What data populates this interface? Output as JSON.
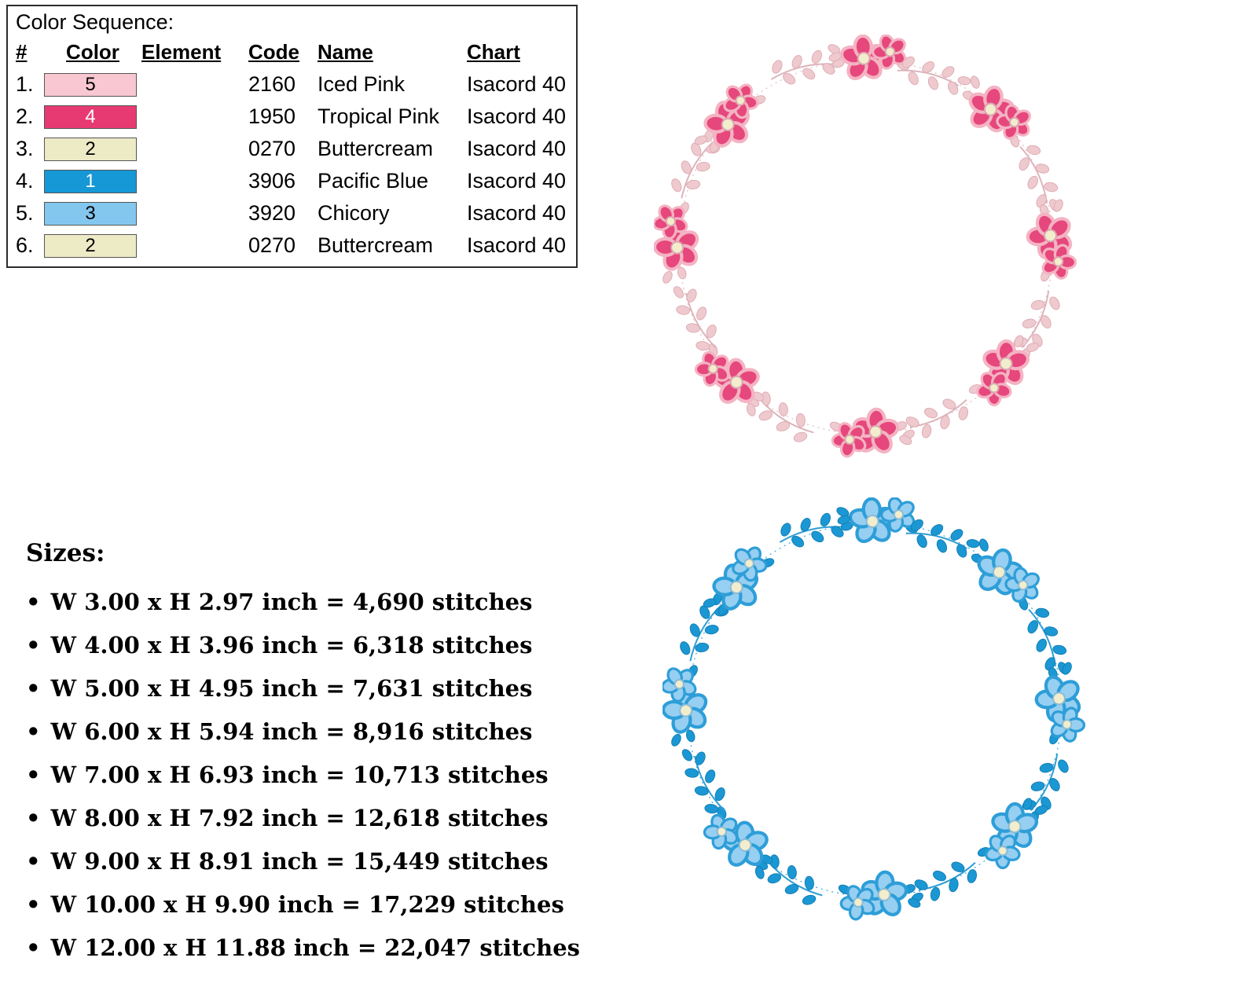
{
  "color_sequence": {
    "title": "Color Sequence:",
    "headers": {
      "num": "#",
      "color": "Color",
      "element": "Element",
      "code": "Code",
      "name": "Name",
      "chart": "Chart"
    },
    "rows": [
      {
        "index": "1.",
        "stop_number": "5",
        "swatch_color": "#f8c7d1",
        "number_color": "#000000",
        "code": "2160",
        "name": "Iced Pink",
        "chart": "Isacord 40"
      },
      {
        "index": "2.",
        "stop_number": "4",
        "swatch_color": "#e83a72",
        "number_color": "#ffffff",
        "code": "1950",
        "name": "Tropical Pink",
        "chart": "Isacord 40"
      },
      {
        "index": "3.",
        "stop_number": "2",
        "swatch_color": "#edeac6",
        "number_color": "#000000",
        "code": "0270",
        "name": "Buttercream",
        "chart": "Isacord 40"
      },
      {
        "index": "4.",
        "stop_number": "1",
        "swatch_color": "#1697d6",
        "number_color": "#ffffff",
        "code": "3906",
        "name": "Pacific Blue",
        "chart": "Isacord 40"
      },
      {
        "index": "5.",
        "stop_number": "3",
        "swatch_color": "#84c7ee",
        "number_color": "#000000",
        "code": "3920",
        "name": "Chicory",
        "chart": "Isacord 40"
      },
      {
        "index": "6.",
        "stop_number": "2",
        "swatch_color": "#edeac6",
        "number_color": "#000000",
        "code": "0270",
        "name": "Buttercream",
        "chart": "Isacord 40"
      }
    ]
  },
  "sizes": {
    "title": "Sizes:",
    "items": [
      "W 3.00 x H 2.97 inch = 4,690 stitches",
      "W 4.00 x H 3.96 inch = 6,318 stitches",
      "W 5.00 x H 4.95 inch = 7,631 stitches",
      "W 6.00 x H 5.94 inch = 8,916 stitches",
      "W 7.00 x H 6.93 inch = 10,713 stitches",
      "W 8.00 x H 7.92 inch = 12,618 stitches",
      "W 9.00 x H 8.91 inch = 15,449 stitches",
      "W 10.00 x H 9.90 inch = 17,229 stitches",
      "W 12.00 x H 11.88 inch = 22,047 stitches"
    ]
  },
  "wreaths": [
    {
      "label": "pink floral wreath",
      "colors": {
        "petal": "#e6477c",
        "petal_edge": "#f4b3c3",
        "flower_center": "#f2edcc",
        "center_edge": "#dba6b0",
        "leaf": "#eecacf",
        "leaf_edge": "#dfacb4",
        "stem": "#dcb5bc"
      }
    },
    {
      "label": "blue floral wreath",
      "colors": {
        "petal": "#96cff1",
        "petal_edge": "#2e9ed8",
        "flower_center": "#f2edcc",
        "center_edge": "#8abbd6",
        "leaf": "#1b98d4",
        "leaf_edge": "#137fb4",
        "stem": "#2d9ed6"
      }
    }
  ]
}
